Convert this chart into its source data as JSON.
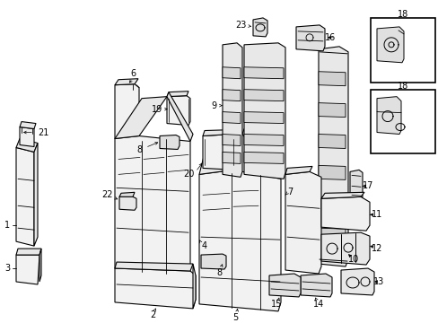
{
  "bg_color": "#ffffff",
  "line_color": "#000000",
  "label_color": "#000000",
  "lw": 0.8,
  "fs": 7.0
}
